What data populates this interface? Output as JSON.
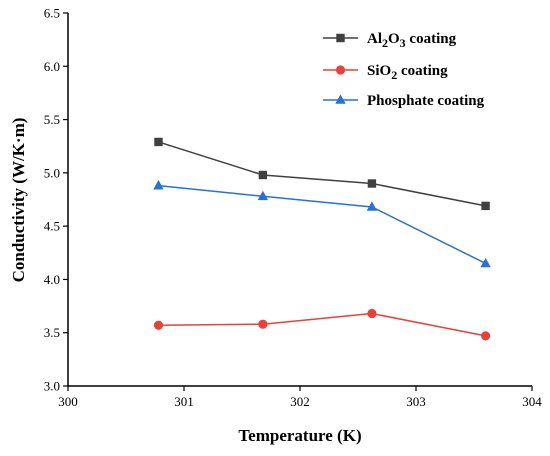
{
  "chart_data": {
    "type": "line",
    "xlabel": "Temperature (K)",
    "ylabel": "Conductivity (W/K·m)",
    "xlim": [
      300,
      304
    ],
    "ylim": [
      3.0,
      6.5
    ],
    "x_ticks": [
      "300",
      "301",
      "302",
      "303",
      "304"
    ],
    "y_ticks": [
      "3.0",
      "3.5",
      "4.0",
      "4.5",
      "5.0",
      "5.5",
      "6.0",
      "6.5"
    ],
    "legend_position": "top-right",
    "grid": false,
    "series": [
      {
        "name": "Al2O3 coating",
        "legend": {
          "p1": "Al",
          "s1": "2",
          "p2": "O",
          "s2": "3",
          "p3": " coating"
        },
        "color": "#404040",
        "marker": "square",
        "x": [
          300.78,
          301.68,
          302.62,
          303.6
        ],
        "values": [
          5.29,
          4.98,
          4.9,
          4.69
        ]
      },
      {
        "name": "SiO2 coating",
        "legend": {
          "p1": "SiO",
          "s1": "2",
          "p2": " coating"
        },
        "color": "#e8413a",
        "marker": "circle",
        "x": [
          300.78,
          301.68,
          302.62,
          303.6
        ],
        "values": [
          3.57,
          3.58,
          3.68,
          3.47
        ]
      },
      {
        "name": "Phosphate coating",
        "legend": {
          "p1": "Phosphate coating"
        },
        "color": "#2a6fdb",
        "marker": "triangle",
        "x": [
          300.78,
          301.68,
          302.62,
          303.6
        ],
        "values": [
          4.88,
          4.78,
          4.68,
          4.15
        ]
      }
    ]
  }
}
